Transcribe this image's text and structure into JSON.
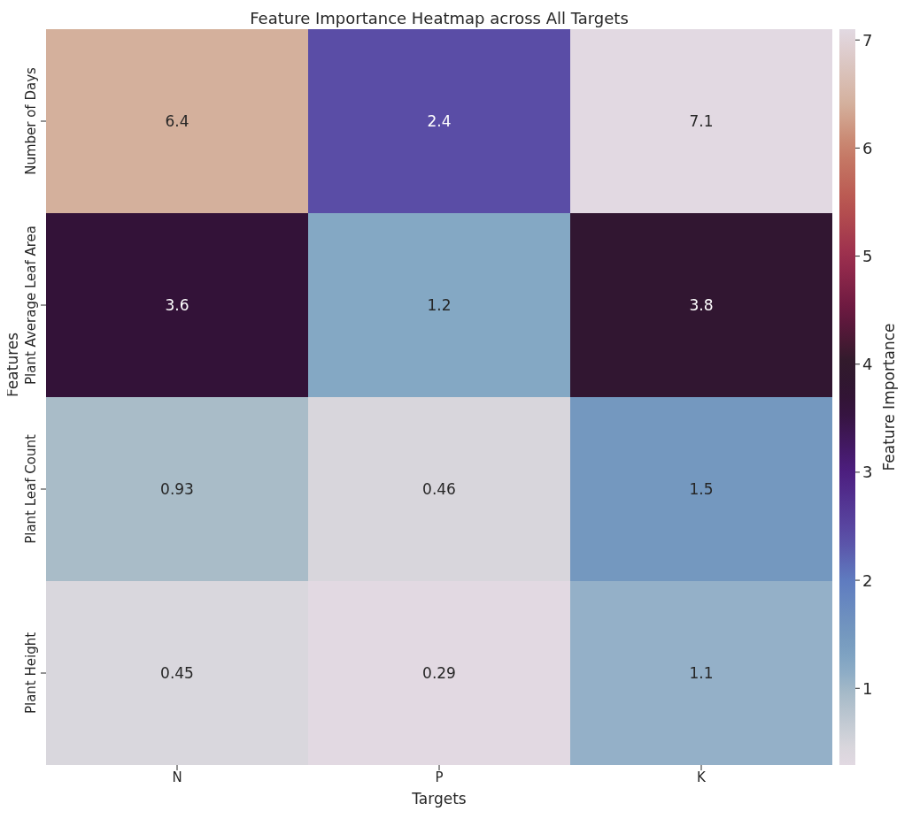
{
  "chart_data": {
    "type": "heatmap",
    "title": "Feature Importance Heatmap across All Targets",
    "xlabel": "Targets",
    "ylabel": "Features",
    "clabel": "Feature Importance",
    "categories": [
      "N",
      "P",
      "K"
    ],
    "y_categories": [
      "Number of Days",
      "Plant Average Leaf Area",
      "Plant Leaf Count",
      "Plant Height"
    ],
    "cells": [
      [
        6.4,
        2.4,
        7.1
      ],
      [
        3.6,
        1.2,
        3.8
      ],
      [
        0.93,
        0.46,
        1.5
      ],
      [
        0.45,
        0.29,
        1.1
      ]
    ],
    "clim": [
      0.29,
      7.1
    ],
    "cticks": [
      1,
      2,
      3,
      4,
      5,
      6,
      7
    ],
    "data_labels": true
  }
}
